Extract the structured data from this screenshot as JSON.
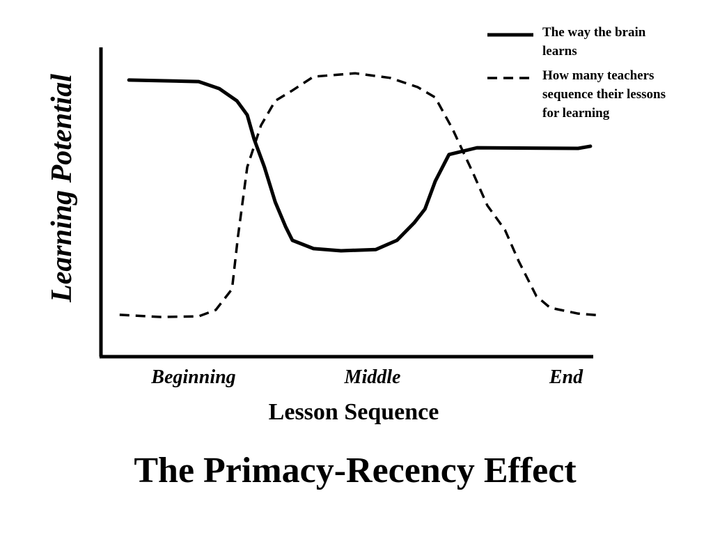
{
  "chart_data": {
    "type": "line",
    "title": "The Primacy-Recency Effect",
    "x_label": "Lesson Sequence",
    "y_label": "Learning Potential",
    "categories": [
      "Beginning",
      "Middle",
      "End"
    ],
    "xlim": [
      0,
      100
    ],
    "ylim": [
      0,
      100
    ],
    "legend": "top-right",
    "series": [
      {
        "name": "The way the brain learns",
        "color": "#000000",
        "style": "solid",
        "x": [
          5.7,
          19.9,
          24.1,
          27.7,
          29.8,
          31.2,
          33.3,
          35.5,
          37.6,
          39.0,
          43.3,
          48.9,
          56.0,
          60.3,
          63.8,
          66.0,
          68.1,
          70.9,
          76.6,
          97.2,
          99.7
        ],
        "values": [
          89.8,
          89.3,
          87.0,
          83.0,
          78.4,
          70.5,
          61.4,
          50.0,
          42.0,
          37.5,
          34.8,
          34.1,
          34.5,
          37.5,
          43.2,
          47.7,
          56.8,
          65.5,
          67.7,
          67.5,
          68.2
        ]
      },
      {
        "name": "How many teachers sequence their lessons for learning",
        "color": "#000000",
        "style": "dashed",
        "x": [
          3.8,
          12.1,
          19.9,
          23.4,
          26.7,
          27.9,
          29.8,
          32.6,
          35.5,
          39.0,
          43.3,
          51.8,
          58.9,
          64.5,
          68.1,
          71.6,
          75.9,
          78.7,
          82.3,
          85.1,
          88.7,
          91.5,
          97.2,
          101.7
        ],
        "values": [
          13.2,
          12.5,
          12.7,
          14.8,
          21.6,
          38.6,
          61.4,
          75.0,
          83.0,
          86.4,
          90.9,
          92.0,
          90.5,
          87.5,
          84.1,
          73.9,
          59.1,
          48.9,
          40.9,
          30.7,
          19.3,
          15.5,
          13.6,
          13.0
        ]
      }
    ]
  }
}
